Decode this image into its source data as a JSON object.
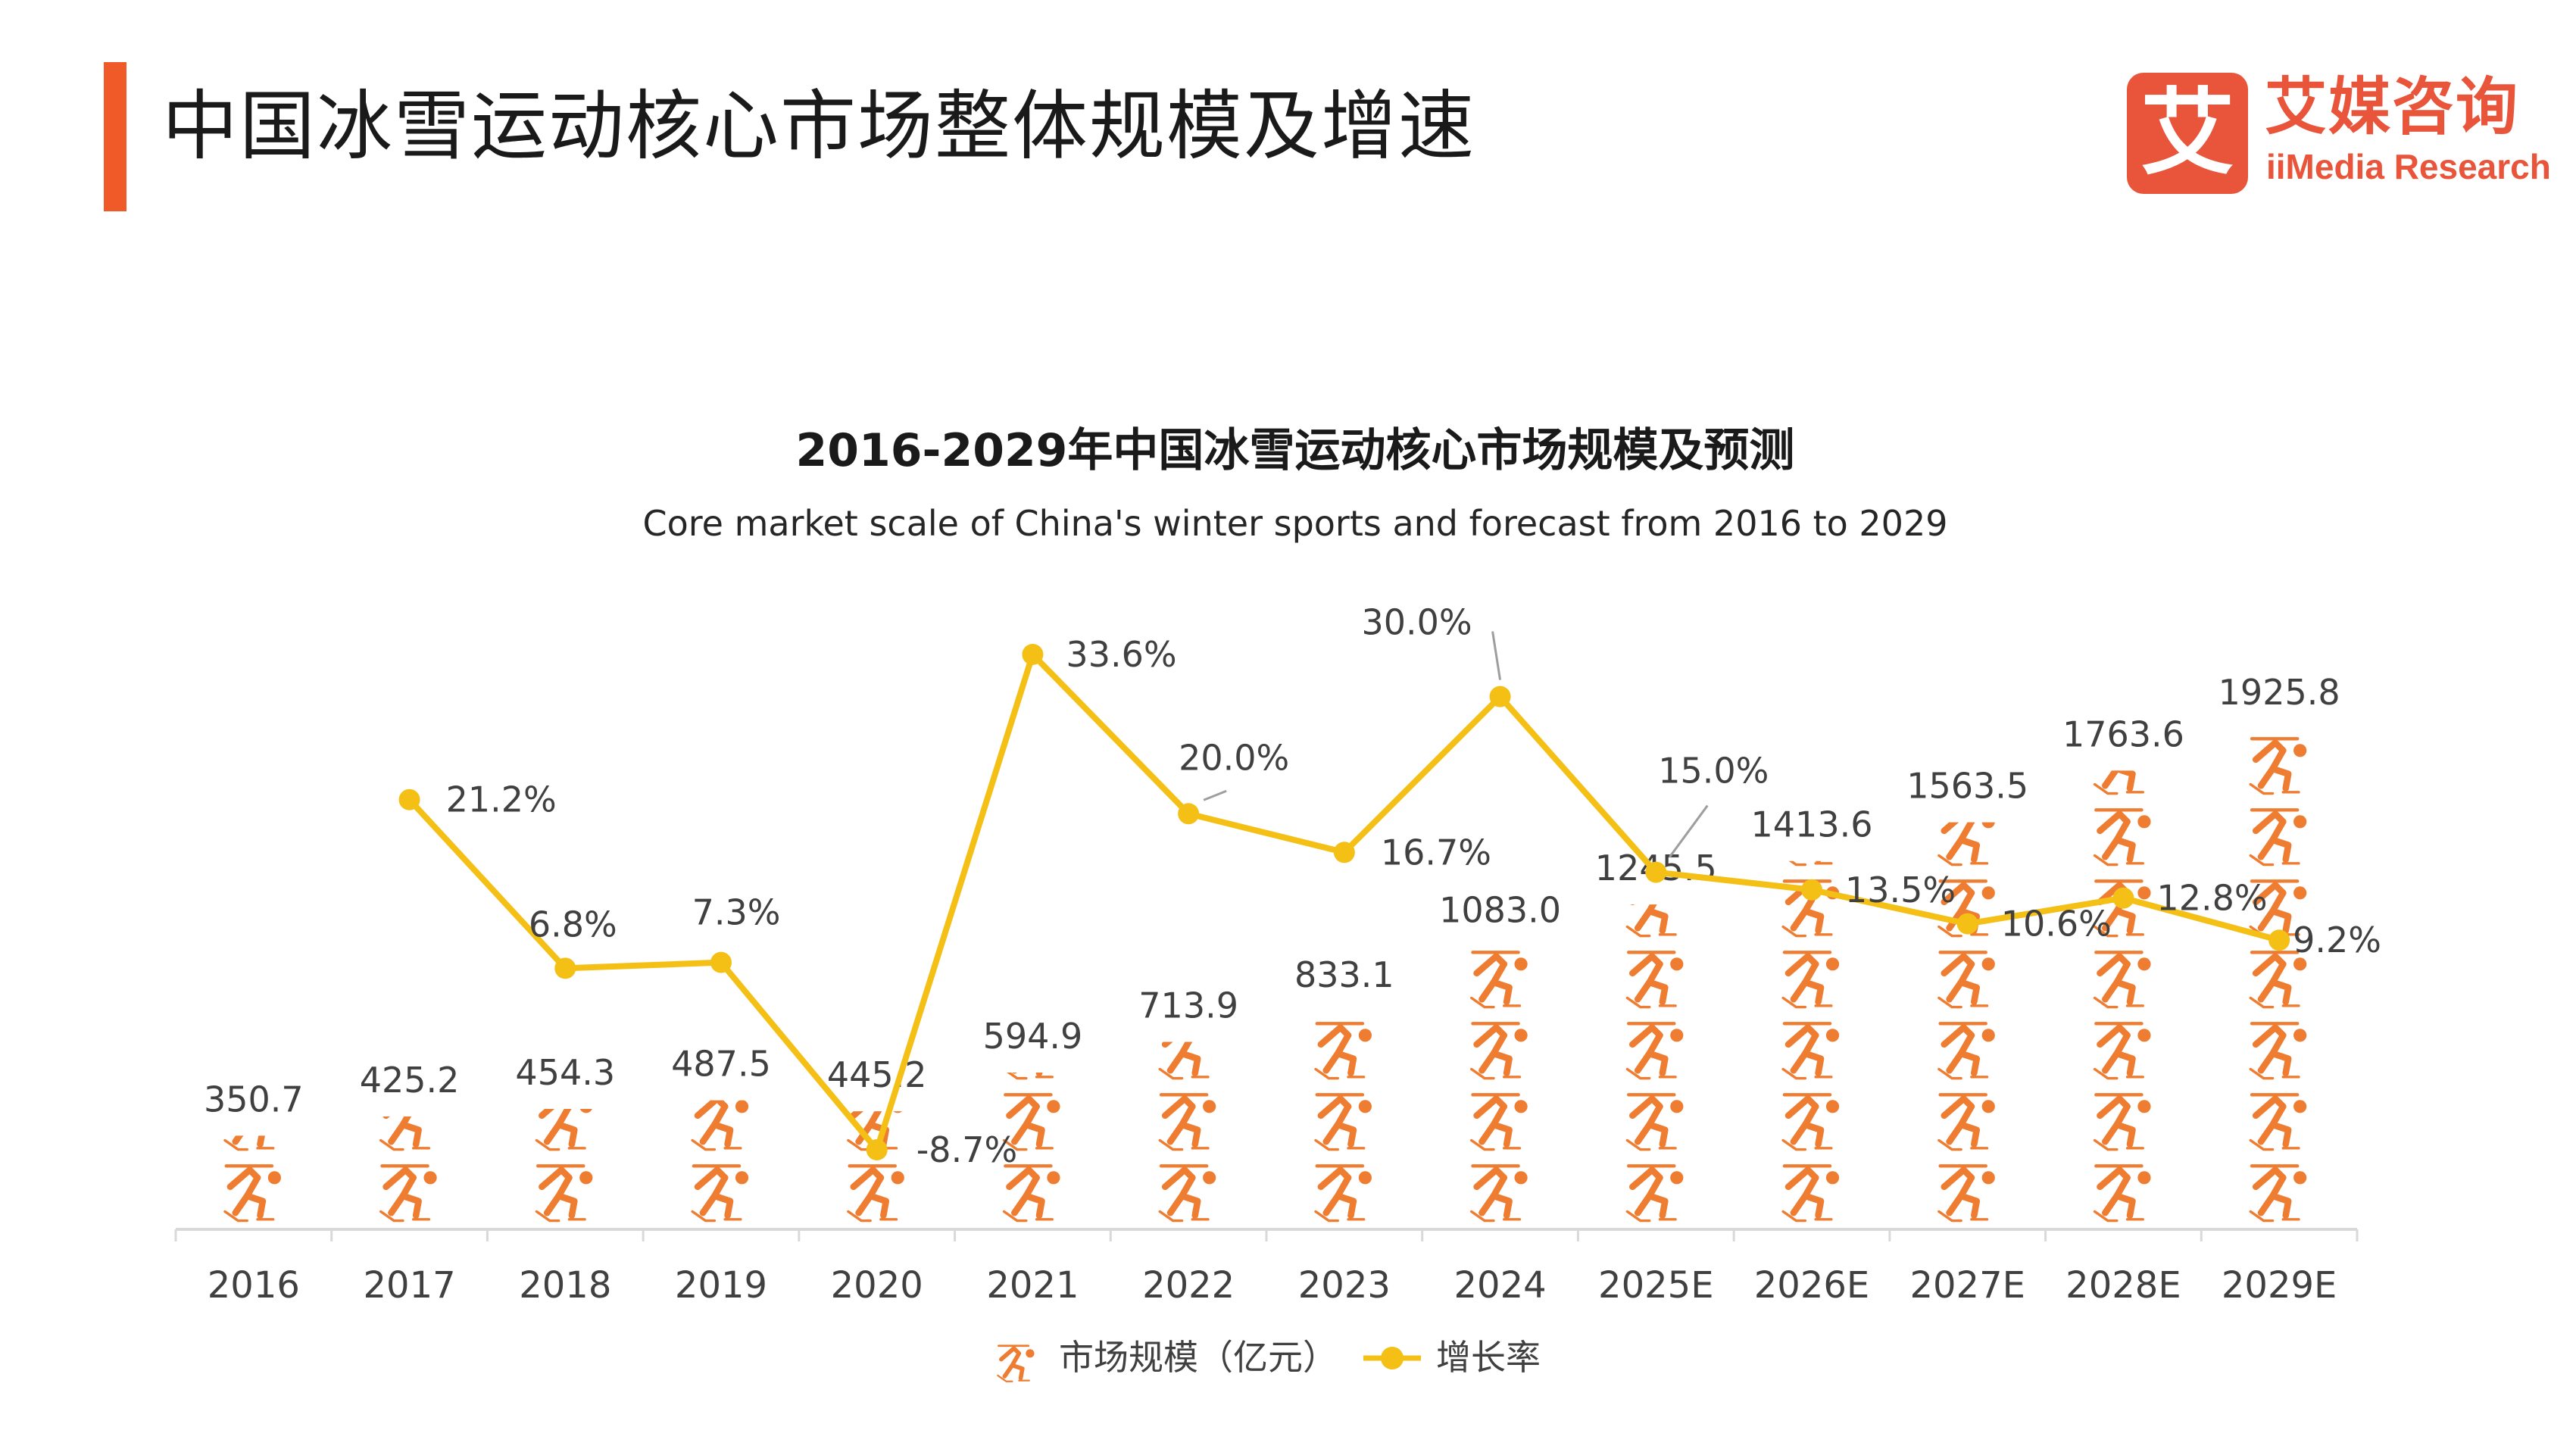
{
  "header": {
    "title": "中国冰雪运动核心市场整体规模及增速",
    "logo_mark": "艾",
    "logo_cn": "艾媒咨询",
    "logo_en": "iiMedia Research"
  },
  "colors": {
    "accent": "#f05a28",
    "bar_icon": "#ee7d31",
    "line": "#f4c016",
    "text": "#404040"
  },
  "chart_data": {
    "type": "bar+line",
    "title": "2016-2029年中国冰雪运动核心市场规模及预测",
    "subtitle": "Core market scale of China's winter sports and forecast from 2016 to 2029",
    "categories": [
      "2016",
      "2017",
      "2018",
      "2019",
      "2020",
      "2021",
      "2022",
      "2023",
      "2024",
      "2025E",
      "2026E",
      "2027E",
      "2028E",
      "2029E"
    ],
    "series": [
      {
        "name": "市场规模（亿元）",
        "kind": "pictorial-bar",
        "icon": "skater-icon",
        "values": [
          350.7,
          425.2,
          454.3,
          487.5,
          445.2,
          594.9,
          713.9,
          833.1,
          1083.0,
          1245.5,
          1413.6,
          1563.5,
          1763.6,
          1925.8
        ],
        "labels": [
          "350.7",
          "425.2",
          "454.3",
          "487.5",
          "445.2",
          "594.9",
          "713.9",
          "833.1",
          "1083.0",
          "1245.5",
          "1413.6",
          "1563.5",
          "1763.6",
          "1925.8"
        ],
        "ylim": [
          0,
          1925.8
        ]
      },
      {
        "name": "增长率",
        "kind": "line",
        "values": [
          null,
          21.2,
          6.8,
          7.3,
          -8.7,
          33.6,
          20.0,
          16.7,
          30.0,
          15.0,
          13.5,
          10.6,
          12.8,
          9.2
        ],
        "labels": [
          "",
          "21.2%",
          "6.8%",
          "7.3%",
          "-8.7%",
          "33.6%",
          "20.0%",
          "16.7%",
          "30.0%",
          "15.0%",
          "13.5%",
          "10.6%",
          "12.8%",
          "9.2%"
        ],
        "ylim": [
          -8.7,
          33.6
        ]
      }
    ],
    "legend": [
      "市场规模（亿元）",
      "增长率"
    ],
    "legend_position": "bottom"
  }
}
